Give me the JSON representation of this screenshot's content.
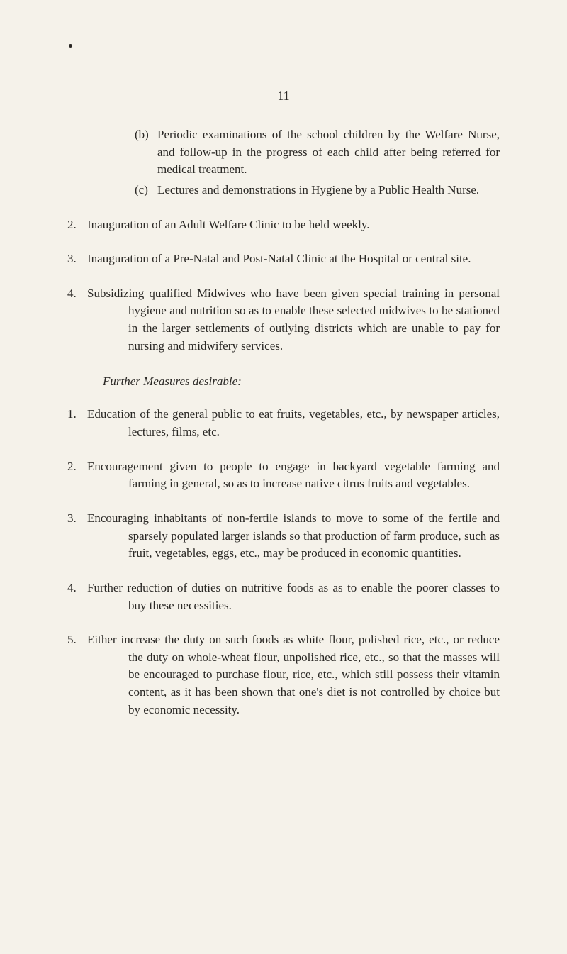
{
  "page_number": "11",
  "section_a": {
    "items": [
      {
        "label": "(b)",
        "text": "Periodic examinations of the school children by the Welfare Nurse, and follow-up in the pro­gress of each child after being referred for medical treatment."
      },
      {
        "label": "(c)",
        "text": "Lectures and demonstrations in Hygiene by a Public Health Nurse."
      }
    ],
    "numbered": [
      {
        "label": "2.",
        "text": "Inauguration of an Adult Welfare Clinic to be held weekly."
      },
      {
        "label": "3.",
        "text": "Inauguration of a Pre-Natal and Post-Natal Clinic at the Hospital or central site."
      },
      {
        "label": "4.",
        "text": "Subsidizing qualified Midwives who have been given special training in personal hygiene and nutrition so as to enable these selected midwives to be stationed in the larger settlements of outlying districts which are unable to pay for nursing and midwifery ser­vices."
      }
    ]
  },
  "section_b": {
    "heading": "Further Measures desirable:",
    "numbered": [
      {
        "label": "1.",
        "text": "Education of the general public to eat fruits, vegetables, etc., by newspaper articles, lectures, films, etc."
      },
      {
        "label": "2.",
        "text": "Encouragement given to people to engage in backyard vegetable farming and farming in general, so as to increase native citrus fruits and vegetables."
      },
      {
        "label": "3.",
        "text": "Encouraging inhabitants of non-fertile islands to move to some of the fertile and sparsely populated larger islands so that production of farm produce, such as fruit, vegetables, eggs, etc., may be produced in economic quantities."
      },
      {
        "label": "4.",
        "text": "Further reduction of duties on nutritive foods as as to enable the poorer classes to buy these necessities."
      },
      {
        "label": "5.",
        "text": "Either increase the duty on such foods as white flour, polished rice, etc., or reduce the duty on whole-wheat flour, unpolished rice, etc., so that the masses will be encouraged to purchase flour, rice, etc., which still possess their vitamin content, as it has been shown that one's diet is not controlled by choice but by economic necessity."
      }
    ]
  }
}
